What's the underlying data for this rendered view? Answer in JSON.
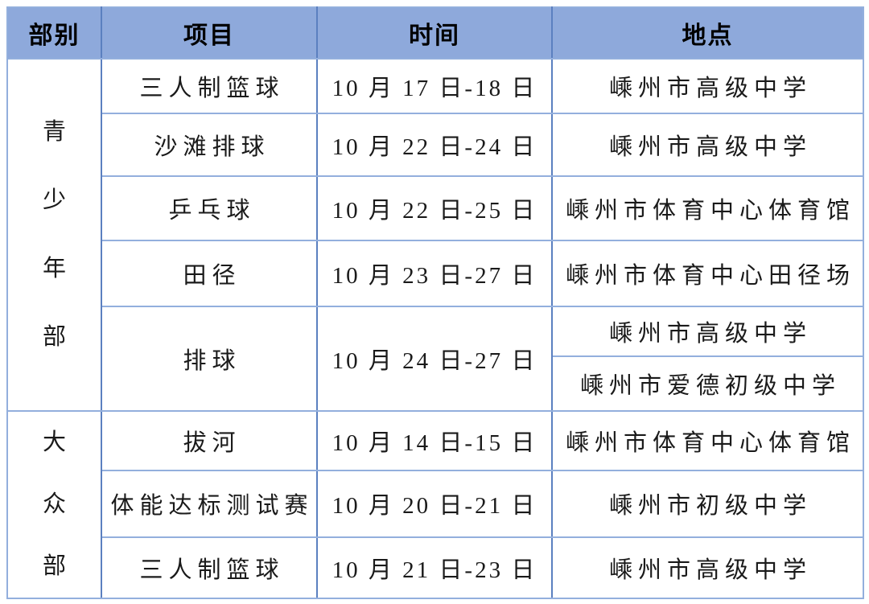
{
  "page": {
    "background": "#ffffff"
  },
  "colors": {
    "header_bg": "#8ea9db",
    "grid_vertical": "#5b80c0",
    "grid_horizontal": "#93afdd",
    "header_text": "#000000",
    "body_text": "#1a1a1a"
  },
  "table": {
    "columns": [
      "部别",
      "项目",
      "时间",
      "地点"
    ],
    "sections": [
      {
        "department": "青少年部",
        "department_chars": [
          "青",
          "少",
          "年",
          "部"
        ],
        "rows": [
          {
            "event": "三人制篮球",
            "time": "10 月 17 日-18 日",
            "locations": [
              "嵊州市高级中学"
            ]
          },
          {
            "event": "沙滩排球",
            "time": "10 月 22 日-24 日",
            "locations": [
              "嵊州市高级中学"
            ]
          },
          {
            "event": "乒乓球",
            "time": "10 月 22 日-25 日",
            "locations": [
              "嵊州市体育中心体育馆"
            ]
          },
          {
            "event": "田径",
            "time": "10 月 23 日-27 日",
            "locations": [
              "嵊州市体育中心田径场"
            ]
          },
          {
            "event": "排球",
            "time": "10 月 24 日-27 日",
            "locations": [
              "嵊州市高级中学",
              "嵊州市爱德初级中学"
            ]
          }
        ]
      },
      {
        "department": "大众部",
        "department_chars": [
          "大",
          "众",
          "部"
        ],
        "rows": [
          {
            "event": "拔河",
            "time": "10 月 14 日-15 日",
            "locations": [
              "嵊州市体育中心体育馆"
            ]
          },
          {
            "event": "体能达标测试赛",
            "time": "10 月 20 日-21 日",
            "locations": [
              "嵊州市初级中学"
            ]
          },
          {
            "event": "三人制篮球",
            "time": "10 月 21 日-23 日",
            "locations": [
              "嵊州市高级中学"
            ]
          }
        ]
      }
    ]
  }
}
